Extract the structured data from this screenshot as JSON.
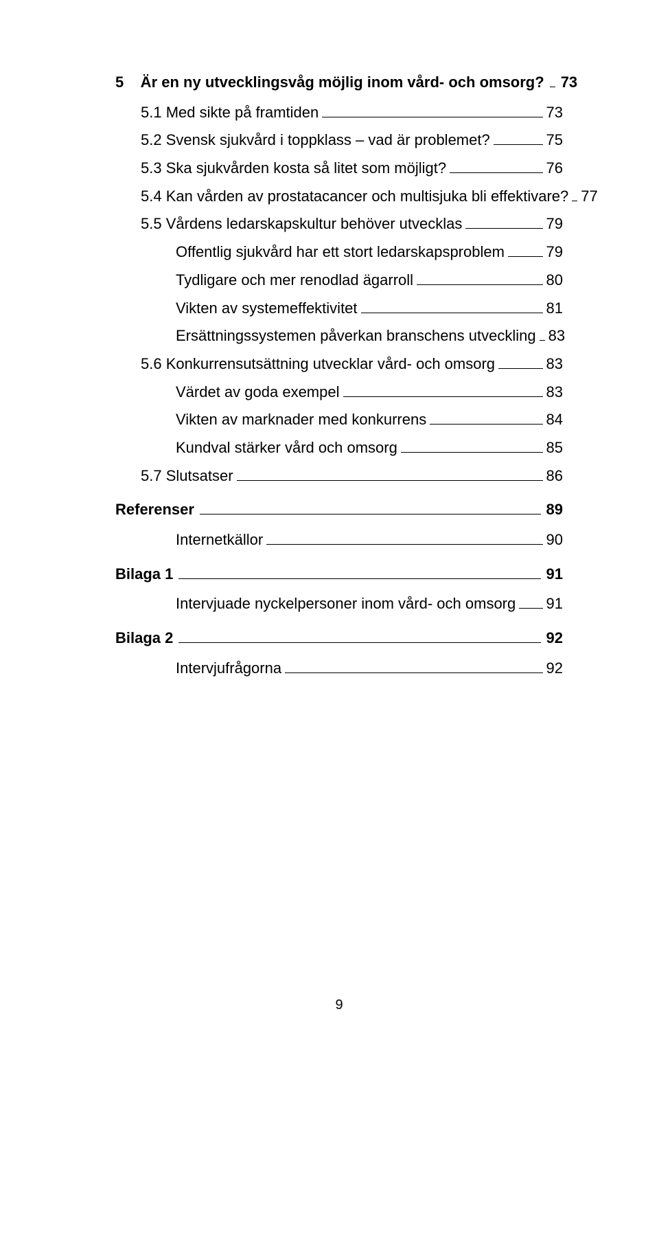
{
  "toc": [
    {
      "level": 0,
      "class": "first",
      "text": "5    Är en ny utvecklingsvåg möjlig inom vård- och omsorg?",
      "page": "73"
    },
    {
      "level": 1,
      "text": "5.1 Med sikte på framtiden",
      "page": "73"
    },
    {
      "level": 1,
      "text": "5.2 Svensk sjukvård i toppklass – vad är problemet?",
      "page": "75"
    },
    {
      "level": 1,
      "text": "5.3 Ska sjukvården kosta så litet som möjligt?",
      "page": "76"
    },
    {
      "level": 1,
      "text": "5.4 Kan vården av prostatacancer och multisjuka bli effektivare?",
      "page": "77"
    },
    {
      "level": 1,
      "text": "5.5 Vårdens ledarskapskultur behöver utvecklas",
      "page": "79"
    },
    {
      "level": 2,
      "text": "Offentlig sjukvård har ett stort ledarskapsproblem",
      "page": "79"
    },
    {
      "level": 2,
      "text": "Tydligare och mer renodlad ägarroll",
      "page": "80"
    },
    {
      "level": 2,
      "text": "Vikten av systemeffektivitet",
      "page": "81"
    },
    {
      "level": 2,
      "text": "Ersättningssystemen påverkan branschens utveckling",
      "page": "83"
    },
    {
      "level": 1,
      "text": "5.6 Konkurrensutsättning utvecklar vård- och omsorg",
      "page": "83"
    },
    {
      "level": 2,
      "text": "Värdet av goda exempel",
      "page": "83"
    },
    {
      "level": 2,
      "text": "Vikten av marknader med konkurrens",
      "page": "84"
    },
    {
      "level": 2,
      "text": "Kundval stärker vård och omsorg",
      "page": "85"
    },
    {
      "level": 1,
      "text": "5.7 Slutsatser",
      "page": "86"
    },
    {
      "level": 0,
      "text": "Referenser",
      "page": "89"
    },
    {
      "level": 2,
      "text": "Internetkällor",
      "page": "90"
    },
    {
      "level": 0,
      "text": "Bilaga 1",
      "page": "91"
    },
    {
      "level": 2,
      "text": "Intervjuade nyckelpersoner inom vård- och omsorg",
      "page": "91"
    },
    {
      "level": 0,
      "text": "Bilaga 2",
      "page": "92"
    },
    {
      "level": 2,
      "text": "Intervjufrågorna",
      "page": "92"
    }
  ],
  "page_number": "9"
}
